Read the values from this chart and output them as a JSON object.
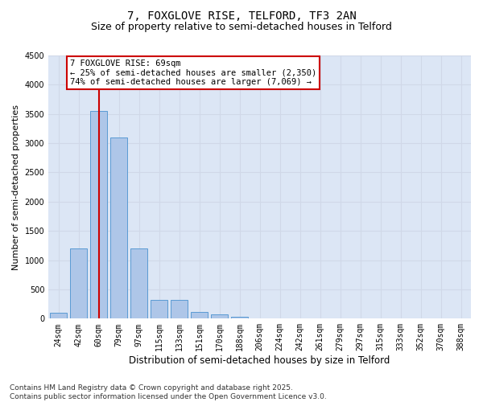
{
  "title": "7, FOXGLOVE RISE, TELFORD, TF3 2AN",
  "subtitle": "Size of property relative to semi-detached houses in Telford",
  "xlabel": "Distribution of semi-detached houses by size in Telford",
  "ylabel": "Number of semi-detached properties",
  "categories": [
    "24sqm",
    "42sqm",
    "60sqm",
    "79sqm",
    "97sqm",
    "115sqm",
    "133sqm",
    "151sqm",
    "170sqm",
    "188sqm",
    "206sqm",
    "224sqm",
    "242sqm",
    "261sqm",
    "279sqm",
    "297sqm",
    "315sqm",
    "333sqm",
    "352sqm",
    "370sqm",
    "388sqm"
  ],
  "values": [
    100,
    1200,
    3550,
    3100,
    1200,
    320,
    320,
    110,
    70,
    30,
    0,
    0,
    0,
    0,
    0,
    0,
    0,
    0,
    0,
    0,
    0
  ],
  "bar_color": "#aec6e8",
  "bar_edge_color": "#5a9bd4",
  "vline_color": "#cc0000",
  "vline_x": 2.0,
  "annotation_text": "7 FOXGLOVE RISE: 69sqm\n← 25% of semi-detached houses are smaller (2,350)\n74% of semi-detached houses are larger (7,069) →",
  "annotation_box_color": "#ffffff",
  "annotation_box_edge_color": "#cc0000",
  "ylim": [
    0,
    4500
  ],
  "yticks": [
    0,
    500,
    1000,
    1500,
    2000,
    2500,
    3000,
    3500,
    4000,
    4500
  ],
  "grid_color": "#d0d8e8",
  "background_color": "#dce6f5",
  "footer": "Contains HM Land Registry data © Crown copyright and database right 2025.\nContains public sector information licensed under the Open Government Licence v3.0.",
  "title_fontsize": 10,
  "subtitle_fontsize": 9,
  "xlabel_fontsize": 8.5,
  "ylabel_fontsize": 8,
  "tick_fontsize": 7,
  "annotation_fontsize": 7.5,
  "footer_fontsize": 6.5
}
